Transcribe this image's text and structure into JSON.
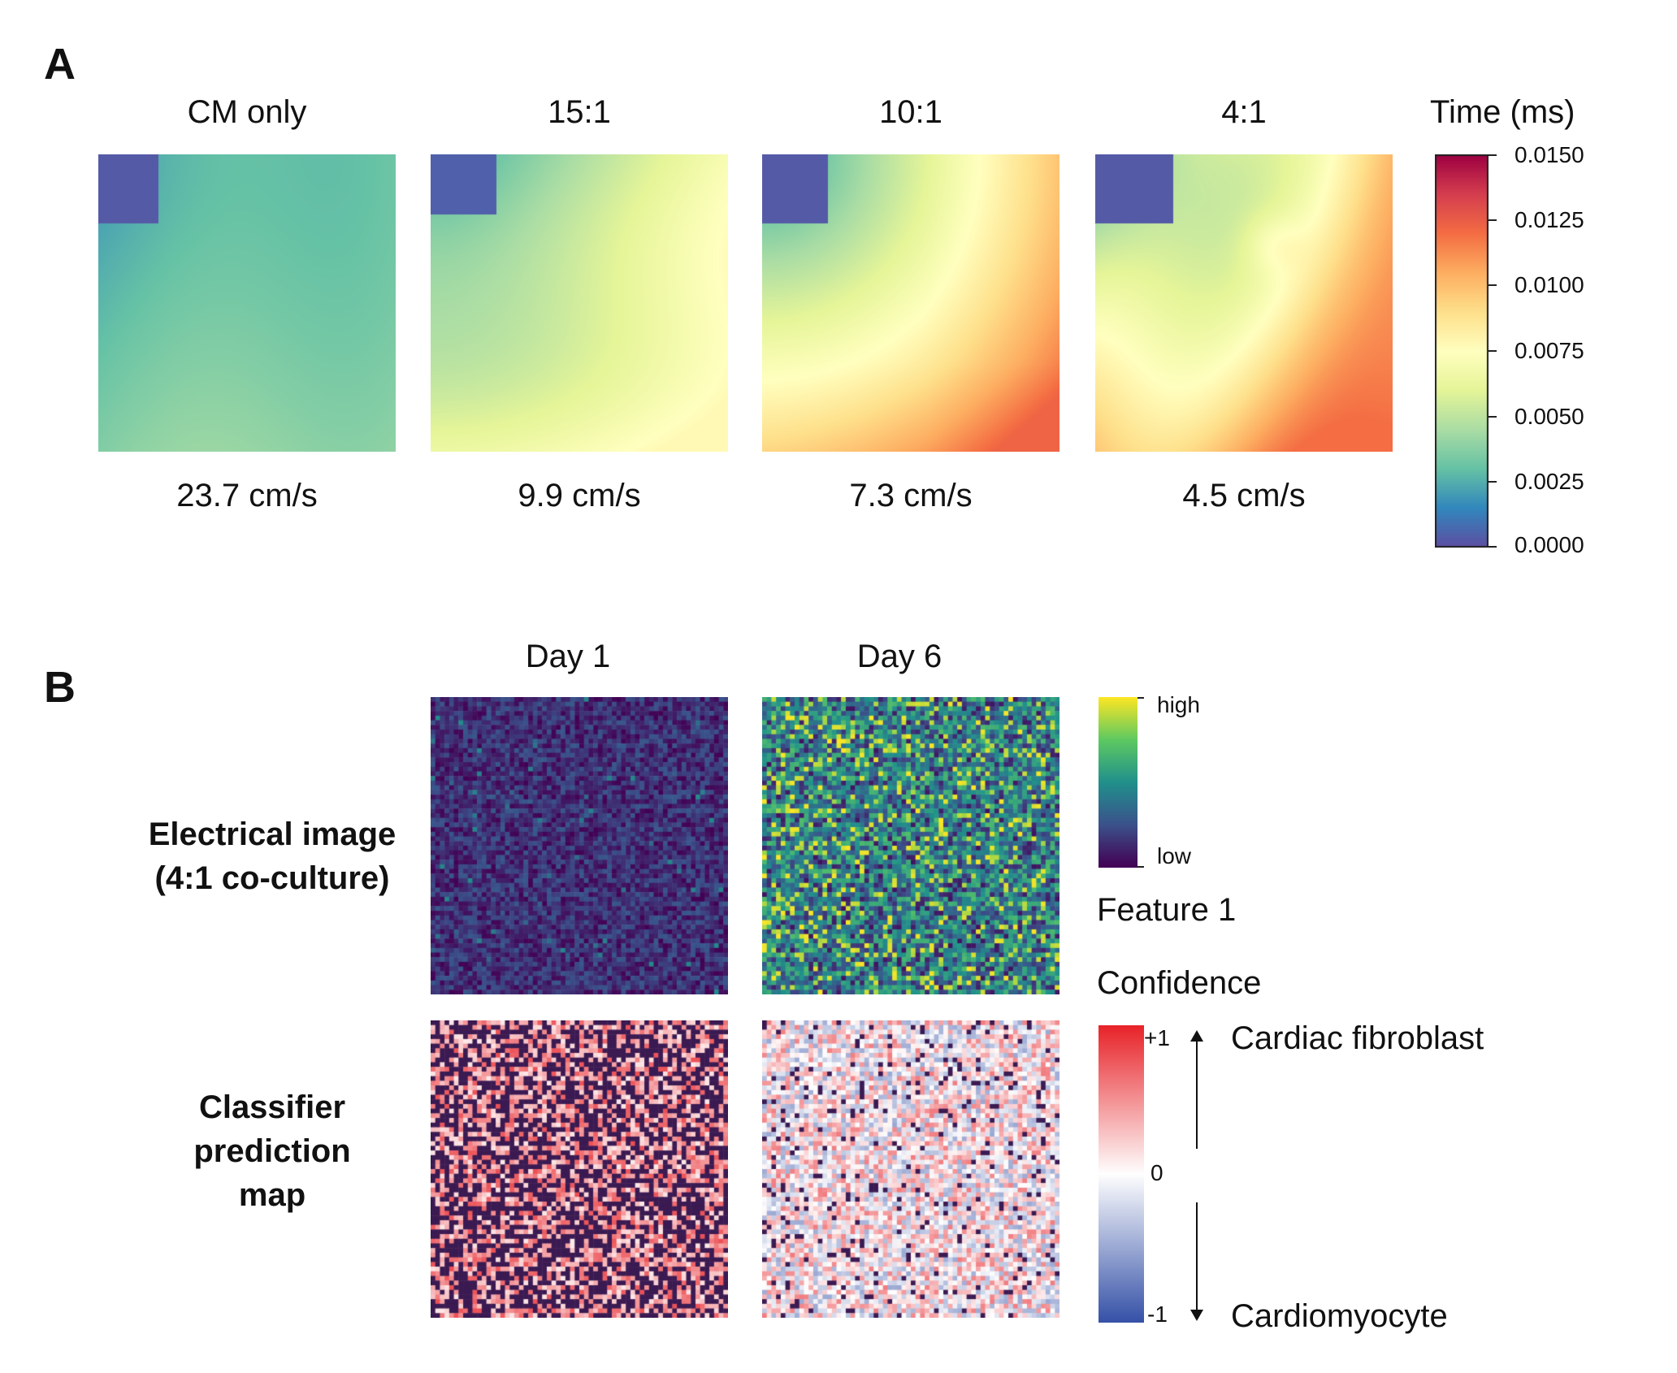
{
  "panel_a": {
    "letter": "A",
    "maps": [
      {
        "title": "CM only",
        "speed": "23.7 cm/s"
      },
      {
        "title": "15:1",
        "speed": "9.9 cm/s"
      },
      {
        "title": "10:1",
        "speed": "7.3 cm/s"
      },
      {
        "title": "4:1",
        "speed": "4.5 cm/s"
      }
    ],
    "colorbar": {
      "title": "Time (ms)",
      "ticks": [
        "0.0150",
        "0.0125",
        "0.0100",
        "0.0075",
        "0.0050",
        "0.0025",
        "0.0000"
      ],
      "range": [
        0.0,
        0.015
      ],
      "colormap": "Spectral_r"
    }
  },
  "panel_b": {
    "letter": "B",
    "columns": [
      "Day 1",
      "Day 6"
    ],
    "rows": [
      {
        "label_lines": [
          "Electrical image",
          "(4:1 co-culture)"
        ]
      },
      {
        "label_lines": [
          "Classifier",
          "prediction",
          "map"
        ]
      }
    ],
    "feature_legend": {
      "high": "high",
      "low": "low",
      "title": "Feature 1",
      "colormap": "viridis"
    },
    "confidence_legend": {
      "title": "Confidence",
      "top_value": "+1",
      "mid_value": "0",
      "bottom_value": "-1",
      "top_class": "Cardiac fibroblast",
      "bottom_class": "Cardiomyocyte",
      "colors": {
        "positive": "#e8242a",
        "neutral": "#ffffff",
        "negative": "#3652a8",
        "unassigned": "#3b1a52"
      }
    }
  }
}
